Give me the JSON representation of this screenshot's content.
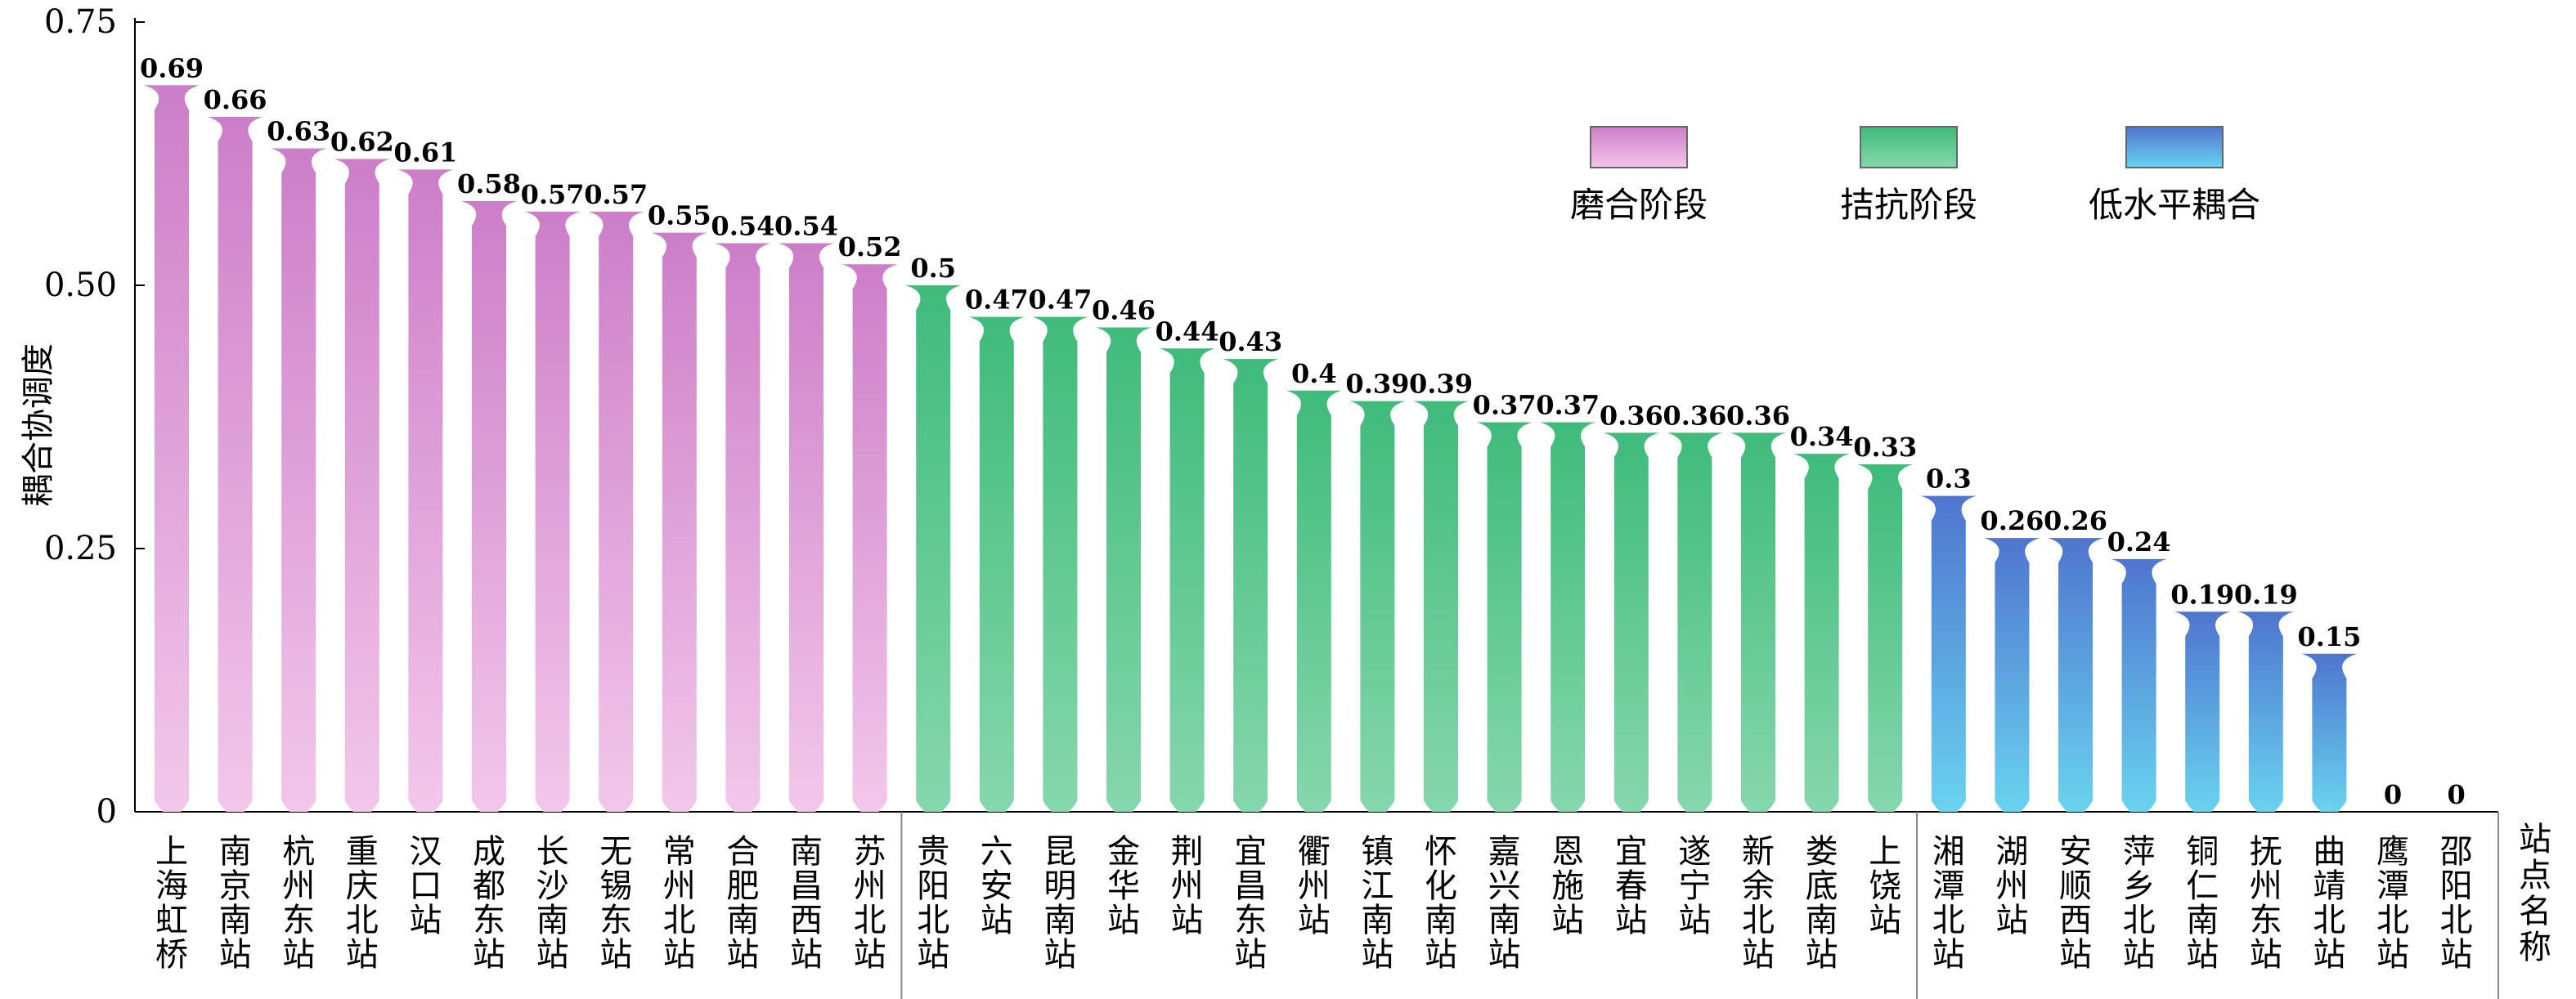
{
  "chart_data": {
    "type": "bar",
    "ylabel": "耦合协调度",
    "xlabel": "站点名称",
    "ylim": [
      0,
      0.75
    ],
    "yticks": [
      "0",
      "0.25",
      "0.50",
      "0.75"
    ],
    "grid": false,
    "legend_position": "top-right",
    "series": [
      {
        "name": "磨合阶段",
        "color_top": "#cc7ec8",
        "color_bottom": "#f3c7ea",
        "categories": [
          "上海虹桥",
          "南京南站",
          "杭州东站",
          "重庆北站",
          "汉口站",
          "成都东站",
          "长沙南站",
          "无锡东站",
          "常州北站",
          "合肥南站",
          "南昌西站",
          "苏州北站"
        ],
        "values": [
          0.69,
          0.66,
          0.63,
          0.62,
          0.61,
          0.58,
          0.57,
          0.57,
          0.55,
          0.54,
          0.54,
          0.52
        ],
        "labels": [
          "0.69",
          "0.66",
          "0.63",
          "0.62",
          "0.61",
          "0.58",
          "0.57",
          "0.57",
          "0.55",
          "0.54",
          "0.54",
          "0.52"
        ]
      },
      {
        "name": "拮抗阶段",
        "color_top": "#3fbb7a",
        "color_bottom": "#86d7ad",
        "categories": [
          "贵阳北站",
          "六安站",
          "昆明南站",
          "金华站",
          "荆州站",
          "宜昌东站",
          "衢州站",
          "镇江南站",
          "怀化南站",
          "嘉兴南站",
          "恩施站",
          "宜春站",
          "遂宁站",
          "新余北站",
          "娄底南站",
          "上饶站"
        ],
        "values": [
          0.5,
          0.47,
          0.47,
          0.46,
          0.44,
          0.43,
          0.4,
          0.39,
          0.39,
          0.37,
          0.37,
          0.36,
          0.36,
          0.36,
          0.34,
          0.33
        ],
        "labels": [
          "0.5",
          "0.47",
          "0.47",
          "0.46",
          "0.44",
          "0.43",
          "0.4",
          "0.39",
          "0.39",
          "0.37",
          "0.37",
          "0.36",
          "0.36",
          "0.36",
          "0.34",
          "0.33"
        ]
      },
      {
        "name": "低水平耦合",
        "color_top": "#4f75cf",
        "color_bottom": "#69d3ef",
        "categories": [
          "湘潭北站",
          "湖州站",
          "安顺西站",
          "萍乡北站",
          "铜仁南站",
          "抚州东站",
          "曲靖北站",
          "鹰潭北站",
          "邵阳北站"
        ],
        "values": [
          0.3,
          0.26,
          0.26,
          0.24,
          0.19,
          0.19,
          0.15,
          0,
          0
        ],
        "labels": [
          "0.3",
          "0.26",
          "0.26",
          "0.24",
          "0.19",
          "0.19",
          "0.15",
          "0",
          "0"
        ]
      }
    ]
  }
}
